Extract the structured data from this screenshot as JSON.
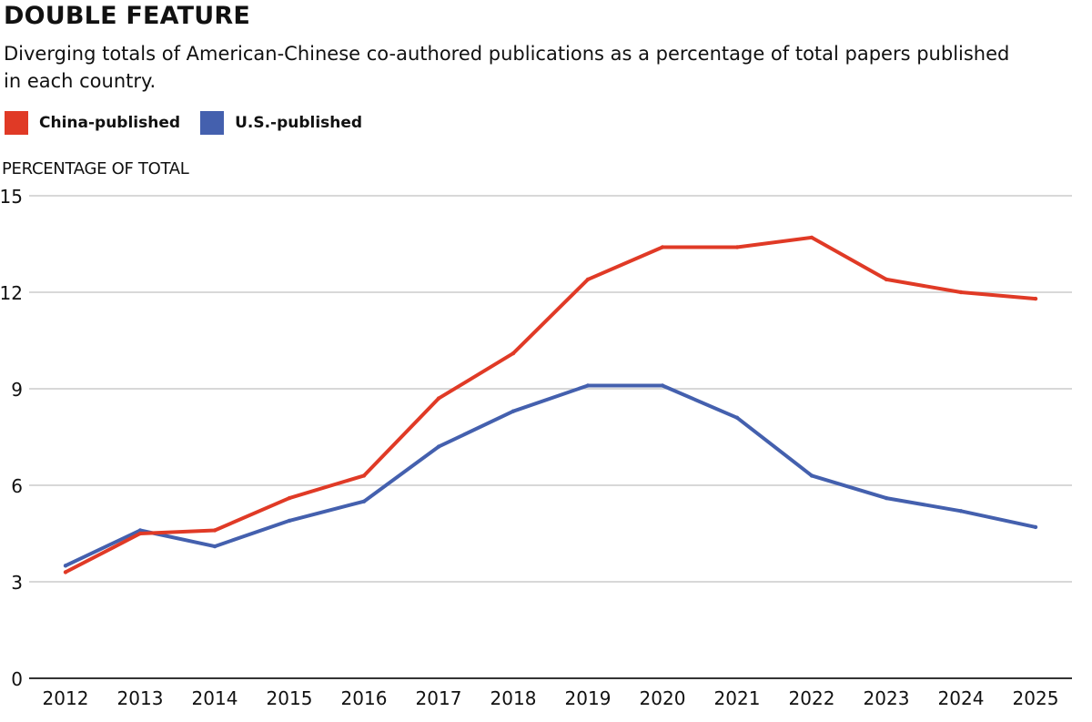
{
  "header": {
    "title": "DOUBLE FEATURE",
    "subtitle": "Diverging totals of American-Chinese co-authored publications as a percentage of total papers published in each country."
  },
  "legend": [
    {
      "label": "China-published",
      "color": "#e03a26"
    },
    {
      "label": "U.S.-published",
      "color": "#4460ae"
    }
  ],
  "chart_data": {
    "type": "line",
    "title": "DOUBLE FEATURE",
    "subtitle": "Diverging totals of American-Chinese co-authored publications as a percentage of total papers published in each country.",
    "xlabel": "",
    "ylabel": "PERCENTAGE OF TOTAL",
    "x": [
      "2012",
      "2013",
      "2014",
      "2015",
      "2016",
      "2017",
      "2018",
      "2019",
      "2020",
      "2021",
      "2022",
      "2023",
      "2024",
      "2025"
    ],
    "ylim": [
      0,
      15
    ],
    "yticks": [
      0,
      3,
      6,
      9,
      12,
      15
    ],
    "grid": true,
    "legend_position": "top-left",
    "series": [
      {
        "name": "China-published",
        "color": "#e03a26",
        "values": [
          3.3,
          4.5,
          4.6,
          5.6,
          6.3,
          8.7,
          10.1,
          12.4,
          13.4,
          13.4,
          13.7,
          12.4,
          12.0,
          11.8
        ]
      },
      {
        "name": "U.S.-published",
        "color": "#4460ae",
        "values": [
          3.5,
          4.6,
          4.1,
          4.9,
          5.5,
          7.2,
          8.3,
          9.1,
          9.1,
          8.1,
          6.3,
          5.6,
          5.2,
          4.7
        ]
      }
    ]
  }
}
